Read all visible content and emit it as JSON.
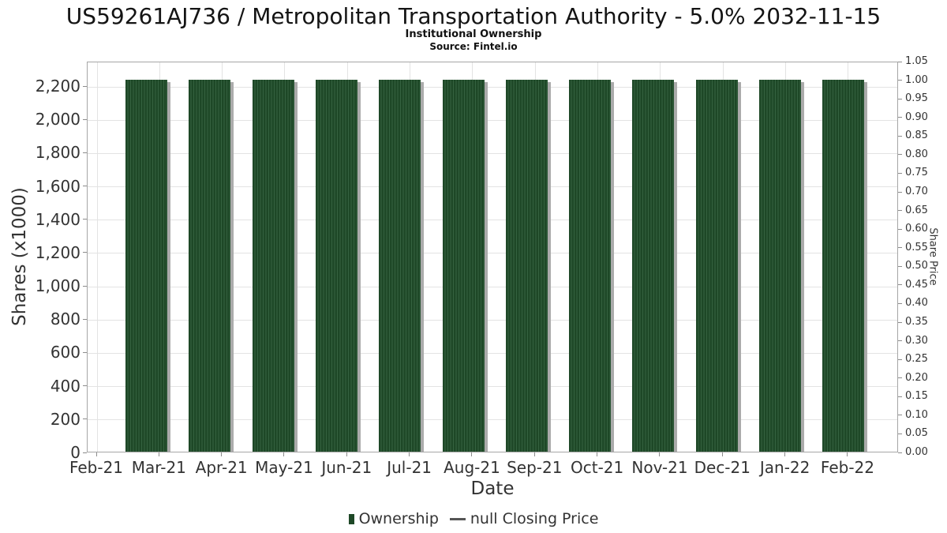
{
  "chart_data": {
    "type": "bar",
    "title": "US59261AJ736 / Metropolitan Transportation Authority - 5.0% 2032-11-15",
    "subtitle": "Institutional Ownership",
    "source": "Source: Fintel.io",
    "xlabel": "Date",
    "ylabel_left": "Shares (x1000)",
    "ylabel_right": "Share Price",
    "categories": [
      "Feb-21",
      "Mar-21",
      "Apr-21",
      "May-21",
      "Jun-21",
      "Jul-21",
      "Aug-21",
      "Sep-21",
      "Oct-21",
      "Nov-21",
      "Dec-21",
      "Jan-22"
    ],
    "series": [
      {
        "name": "Ownership",
        "type": "bar",
        "axis": "left",
        "values": [
          2245,
          2245,
          2245,
          2245,
          2245,
          2245,
          2245,
          2245,
          2245,
          2245,
          2245,
          2245
        ],
        "color": "#1e4827"
      },
      {
        "name": "null Closing Price",
        "type": "line",
        "axis": "right",
        "values": [
          null,
          null,
          null,
          null,
          null,
          null,
          null,
          null,
          null,
          null,
          null,
          null
        ],
        "color": "#555555"
      }
    ],
    "x_tick_labels": [
      "Feb-21",
      "Mar-21",
      "Apr-21",
      "May-21",
      "Jun-21",
      "Jul-21",
      "Aug-21",
      "Sep-21",
      "Oct-21",
      "Nov-21",
      "Dec-21",
      "Jan-22",
      "Feb-22"
    ],
    "axis_left": {
      "ticks": [
        0,
        200,
        400,
        600,
        800,
        1000,
        1200,
        1400,
        1600,
        1800,
        2000,
        2200
      ],
      "tick_labels": [
        "0",
        "200",
        "400",
        "600",
        "800",
        "1,000",
        "1,200",
        "1,400",
        "1,600",
        "1,800",
        "2,000",
        "2,200"
      ],
      "min": 0,
      "max": 2347
    },
    "axis_right": {
      "tick_labels": [
        "0.00",
        "0.05",
        "0.10",
        "0.15",
        "0.20",
        "0.25",
        "0.30",
        "0.35",
        "0.40",
        "0.45",
        "0.50",
        "0.55",
        "0.60",
        "0.65",
        "0.70",
        "0.75",
        "0.80",
        "0.85",
        "0.90",
        "0.95",
        "1.00",
        "1.05"
      ],
      "min": 0,
      "max": 1.05
    },
    "legend": [
      {
        "label": "Ownership",
        "marker": "square",
        "color": "#1e4827"
      },
      {
        "label": "null Closing Price",
        "marker": "line",
        "color": "#555555"
      }
    ],
    "legend_position": "bottom",
    "grid": true,
    "colors": {
      "bar": "#1e4827",
      "bar_stripe": "#356240",
      "shadow": "#ababab",
      "grid": "#e3e3e3",
      "axis": "#a6a6a6",
      "tick": "#8c8c8c",
      "text": "#333333",
      "title": "#141414"
    }
  }
}
